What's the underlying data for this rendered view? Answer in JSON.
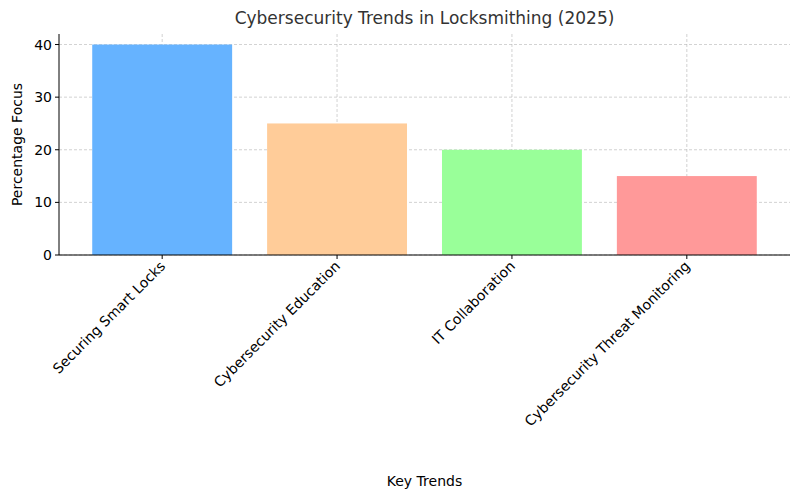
{
  "chart_data": {
    "type": "bar",
    "title": "Cybersecurity Trends in Locksmithing (2025)",
    "x_label": "Key Trends",
    "y_label": "Percentage Focus",
    "categories": [
      "Securing Smart Locks",
      "Cybersecurity Education",
      "IT Collaboration",
      "Cybersecurity Threat Monitoring"
    ],
    "values": [
      40,
      25,
      20,
      15
    ],
    "colors": [
      "#66b3ff",
      "#ffcc99",
      "#99ff99",
      "#ff9999"
    ],
    "ylim": [
      0,
      42
    ],
    "yticks": [
      0,
      10,
      20,
      30,
      40
    ],
    "grid": true
  }
}
